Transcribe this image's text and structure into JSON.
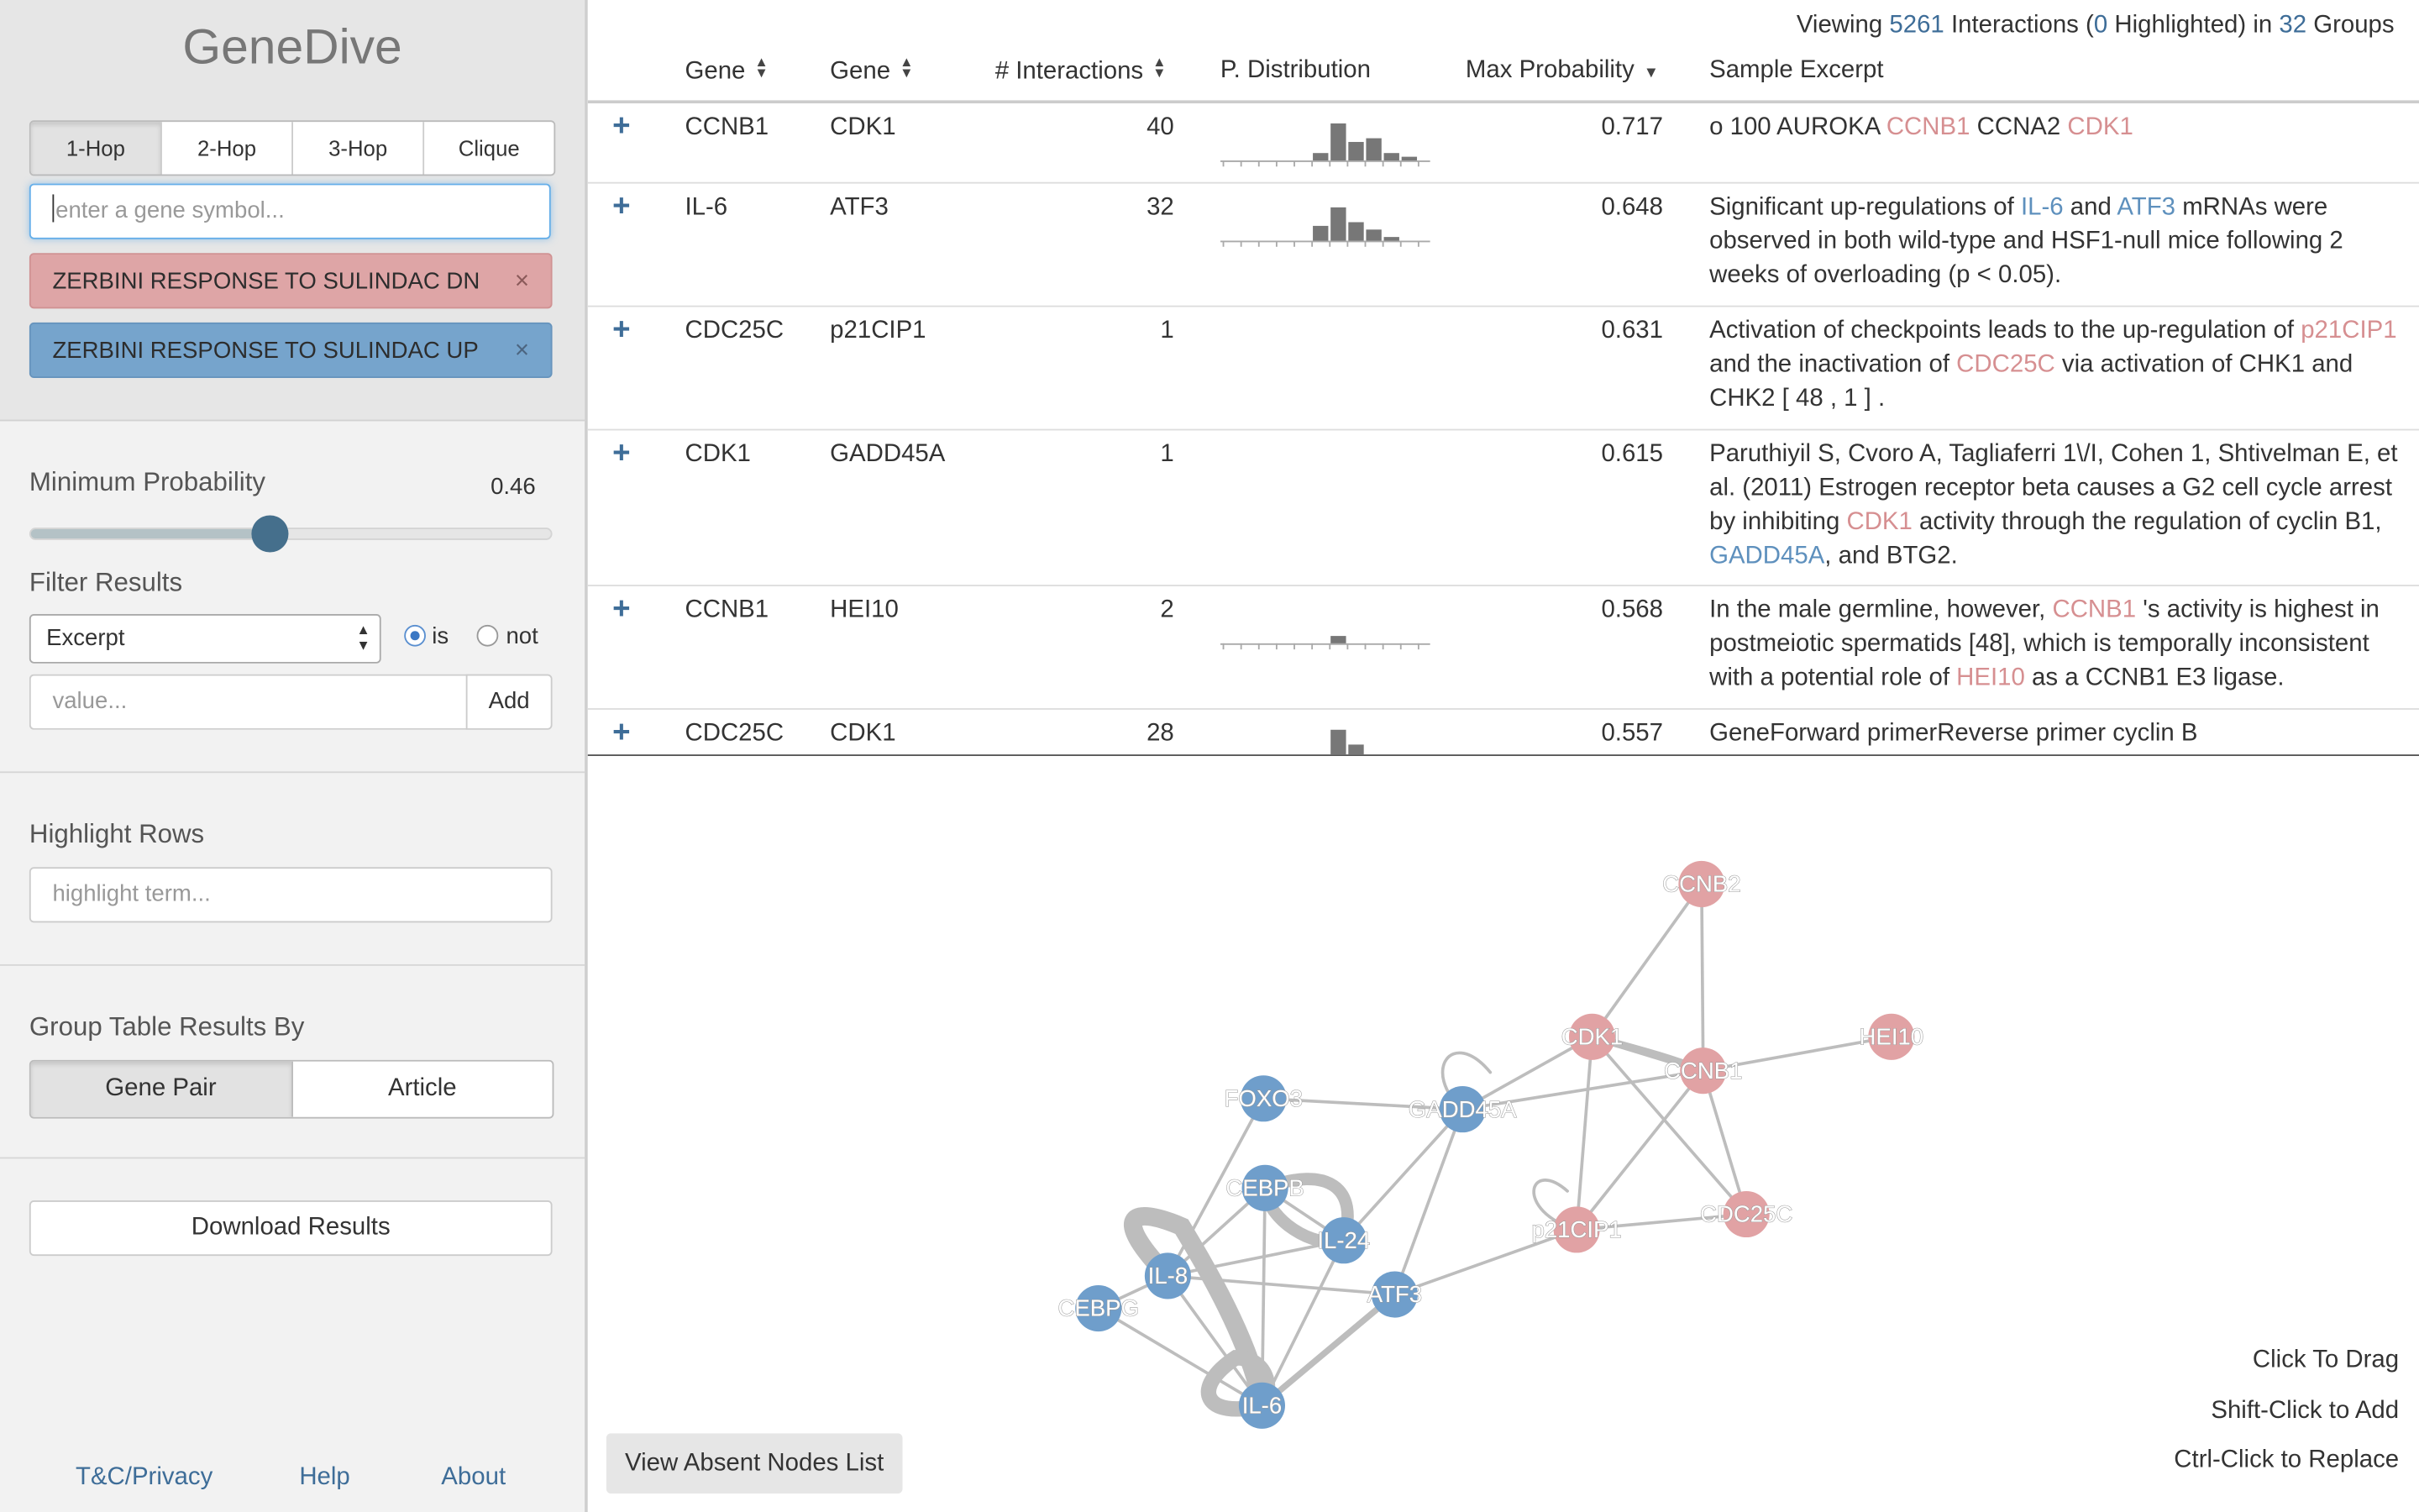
{
  "app": {
    "title": "GeneDive"
  },
  "search": {
    "hops": [
      "1-Hop",
      "2-Hop",
      "3-Hop",
      "Clique"
    ],
    "placeholder": "enter a gene symbol...",
    "sets": [
      {
        "label": "ZERBINI RESPONSE TO SULINDAC DN",
        "remove": "×"
      },
      {
        "label": "ZERBINI RESPONSE TO SULINDAC UP",
        "remove": "×"
      }
    ]
  },
  "probability": {
    "label": "Minimum Probability",
    "value": "0.46",
    "fraction": 0.46
  },
  "filter": {
    "label": "Filter Results",
    "field": "Excerpt",
    "is_label": "is",
    "not_label": "not",
    "value_placeholder": "value...",
    "add_label": "Add"
  },
  "highlight": {
    "label": "Highlight Rows",
    "placeholder": "highlight term..."
  },
  "grouping": {
    "label": "Group Table Results By",
    "options": [
      "Gene Pair",
      "Article"
    ]
  },
  "download": {
    "label": "Download Results"
  },
  "footer": {
    "links": [
      "T&C/Privacy",
      "Help",
      "About"
    ]
  },
  "summary": {
    "prefix": "Viewing ",
    "interactions": "5261",
    "mid1": " Interactions (",
    "highlighted": "0",
    "mid2": " Highlighted) in ",
    "groups": "32",
    "suffix": " Groups"
  },
  "table": {
    "headers": [
      "Gene",
      "Gene",
      "# Interactions",
      "P. Distribution",
      "Max Probability",
      "Sample Excerpt"
    ],
    "expand_symbol": "+",
    "rows": [
      {
        "gene1": "CCNB1",
        "gene2": "CDK1",
        "count": "40",
        "max": "0.717",
        "hist": [
          0,
          0,
          0,
          0,
          0,
          2,
          10,
          5,
          6,
          2,
          1,
          0
        ],
        "excerpt": [
          [
            "o 100 AUROKA ",
            ""
          ],
          [
            "CCNB1",
            "red"
          ],
          [
            " CCNA2 ",
            ""
          ],
          [
            "CDK1",
            "red"
          ]
        ]
      },
      {
        "gene1": "IL-6",
        "gene2": "ATF3",
        "count": "32",
        "max": "0.648",
        "hist": [
          0,
          0,
          0,
          0,
          0,
          4,
          9,
          5,
          3,
          1,
          0,
          0
        ],
        "excerpt": [
          [
            "Significant up-regulations of ",
            ""
          ],
          [
            "IL-6",
            "blue"
          ],
          [
            " and ",
            ""
          ],
          [
            "ATF3",
            "blue"
          ],
          [
            " mRNAs were observed in both wild-type and HSF1-null mice following 2 weeks of overloading (p < 0.05).",
            ""
          ]
        ]
      },
      {
        "gene1": "CDC25C",
        "gene2": "p21CIP1",
        "count": "1",
        "max": "0.631",
        "hist": [],
        "excerpt": [
          [
            "Activation of checkpoints leads to the up-regulation of ",
            ""
          ],
          [
            "p21CIP1",
            "red"
          ],
          [
            " and the inactivation of ",
            ""
          ],
          [
            "CDC25C",
            "red"
          ],
          [
            " via activation of CHK1 and CHK2 [ 48 , 1 ] .",
            ""
          ]
        ]
      },
      {
        "gene1": "CDK1",
        "gene2": "GADD45A",
        "count": "1",
        "max": "0.615",
        "hist": [],
        "excerpt": [
          [
            "Paruthiyil S, Cvoro A, Tagliaferri 1\\/I, Cohen 1, Shtivelman E, et al. (2011) Estrogen receptor beta causes a G2 cell cycle arrest by inhibiting ",
            ""
          ],
          [
            "CDK1",
            "red"
          ],
          [
            " activity through the regulation of cyclin B1, ",
            ""
          ],
          [
            "GADD45A",
            "blue"
          ],
          [
            ", and BTG2.",
            ""
          ]
        ]
      },
      {
        "gene1": "CCNB1",
        "gene2": "HEI10",
        "count": "2",
        "max": "0.568",
        "hist": [
          0,
          0,
          0,
          0,
          0,
          0,
          2,
          0,
          0,
          0,
          0,
          0
        ],
        "excerpt": [
          [
            "In the male germline, however, ",
            ""
          ],
          [
            "CCNB1",
            "red"
          ],
          [
            " 's activity is highest in postmeiotic spermatids [48], which is temporally inconsistent with a potential role of ",
            ""
          ],
          [
            "HEI10",
            "red"
          ],
          [
            " as a CCNB1 E3 ligase.",
            ""
          ]
        ]
      },
      {
        "gene1": "CDC25C",
        "gene2": "CDK1",
        "count": "28",
        "max": "0.557",
        "hist": [
          0,
          0,
          0,
          0,
          0,
          0,
          10,
          6,
          0,
          0,
          0,
          0
        ],
        "excerpt": [
          [
            "GeneForward primerReverse primer cyclin B",
            ""
          ]
        ]
      }
    ]
  },
  "graph": {
    "hints": [
      "Click To Drag",
      "Shift-Click to Add",
      "Ctrl-Click to Replace"
    ],
    "absent_button": "View Absent Nodes List",
    "colors": {
      "red": "#e1a2a4",
      "blue": "#6f9ecb",
      "edge": "#bdbdbd"
    },
    "nodes": [
      {
        "id": "CCNB2",
        "group": "red"
      },
      {
        "id": "CDK1",
        "group": "red"
      },
      {
        "id": "CCNB1",
        "group": "red"
      },
      {
        "id": "HEI10",
        "group": "red"
      },
      {
        "id": "CDC25C",
        "group": "red"
      },
      {
        "id": "p21CIP1",
        "group": "red"
      },
      {
        "id": "GADD45A",
        "group": "blue"
      },
      {
        "id": "FOXO3",
        "group": "blue"
      },
      {
        "id": "CEBPB",
        "group": "blue"
      },
      {
        "id": "IL-24",
        "group": "blue"
      },
      {
        "id": "IL-8",
        "group": "blue"
      },
      {
        "id": "ATF3",
        "group": "blue"
      },
      {
        "id": "CEBPG",
        "group": "blue"
      },
      {
        "id": "IL-6",
        "group": "blue"
      }
    ]
  }
}
